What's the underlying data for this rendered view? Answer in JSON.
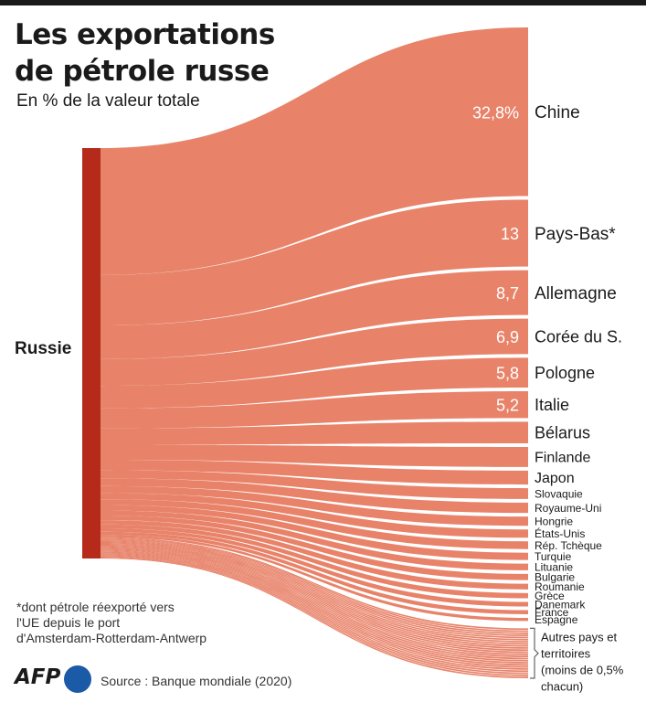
{
  "header": {
    "title_line1": "Les exportations",
    "title_line2": "de pétrole russe",
    "subtitle": "En % de la valeur totale"
  },
  "footnote": {
    "line1": "*dont pétrole réexporté vers",
    "line2": "l'UE depuis le port",
    "line3": "d'Amsterdam-Rotterdam-Antwerp"
  },
  "footer": {
    "logo": "AFP",
    "source": "Source : Banque mondiale (2020)"
  },
  "colors": {
    "flow": "#e8836a",
    "source_bar": "#b52a1a",
    "text_dark": "#1a1a1a",
    "value_label": "#ffffff",
    "logo_dot": "#1a5aa6"
  },
  "chart_data": {
    "type": "sankey",
    "source": "Russie",
    "unit": "%",
    "flows": [
      {
        "label": "Chine",
        "value": 32.8,
        "value_label": "32,8%"
      },
      {
        "label": "Pays-Bas*",
        "value": 13,
        "value_label": "13"
      },
      {
        "label": "Allemagne",
        "value": 8.7,
        "value_label": "8,7"
      },
      {
        "label": "Corée du S.",
        "value": 6.9,
        "value_label": "6,9"
      },
      {
        "label": "Pologne",
        "value": 5.8,
        "value_label": "5,8"
      },
      {
        "label": "Italie",
        "value": 5.2,
        "value_label": "5,2"
      },
      {
        "label": "Bélarus",
        "value": 4.2,
        "value_label": ""
      },
      {
        "label": "Finlande",
        "value": 3.9,
        "value_label": ""
      },
      {
        "label": "Japon",
        "value": 2.7,
        "value_label": ""
      },
      {
        "label": "Slovaquie",
        "value": 2.1,
        "value_label": ""
      },
      {
        "label": "Royaume-Uni",
        "value": 2.0,
        "value_label": ""
      },
      {
        "label": "Hongrie",
        "value": 1.8,
        "value_label": ""
      },
      {
        "label": "États-Unis",
        "value": 1.6,
        "value_label": ""
      },
      {
        "label": "Rép. Tchèque",
        "value": 1.5,
        "value_label": ""
      },
      {
        "label": "Turquie",
        "value": 1.4,
        "value_label": ""
      },
      {
        "label": "Lituanie",
        "value": 1.3,
        "value_label": ""
      },
      {
        "label": "Bulgarie",
        "value": 1.2,
        "value_label": ""
      },
      {
        "label": "Roumanie",
        "value": 1.1,
        "value_label": ""
      },
      {
        "label": "Grèce",
        "value": 1.0,
        "value_label": ""
      },
      {
        "label": "Danemark",
        "value": 0.9,
        "value_label": ""
      },
      {
        "label": "France",
        "value": 0.8,
        "value_label": ""
      },
      {
        "label": "Espagne",
        "value": 0.6,
        "value_label": ""
      }
    ],
    "others": {
      "label_lines": [
        "Autres pays et",
        "territoires",
        "(moins de 0,5%",
        "chacun)"
      ],
      "value": 5.5,
      "stream_count": 24
    }
  }
}
